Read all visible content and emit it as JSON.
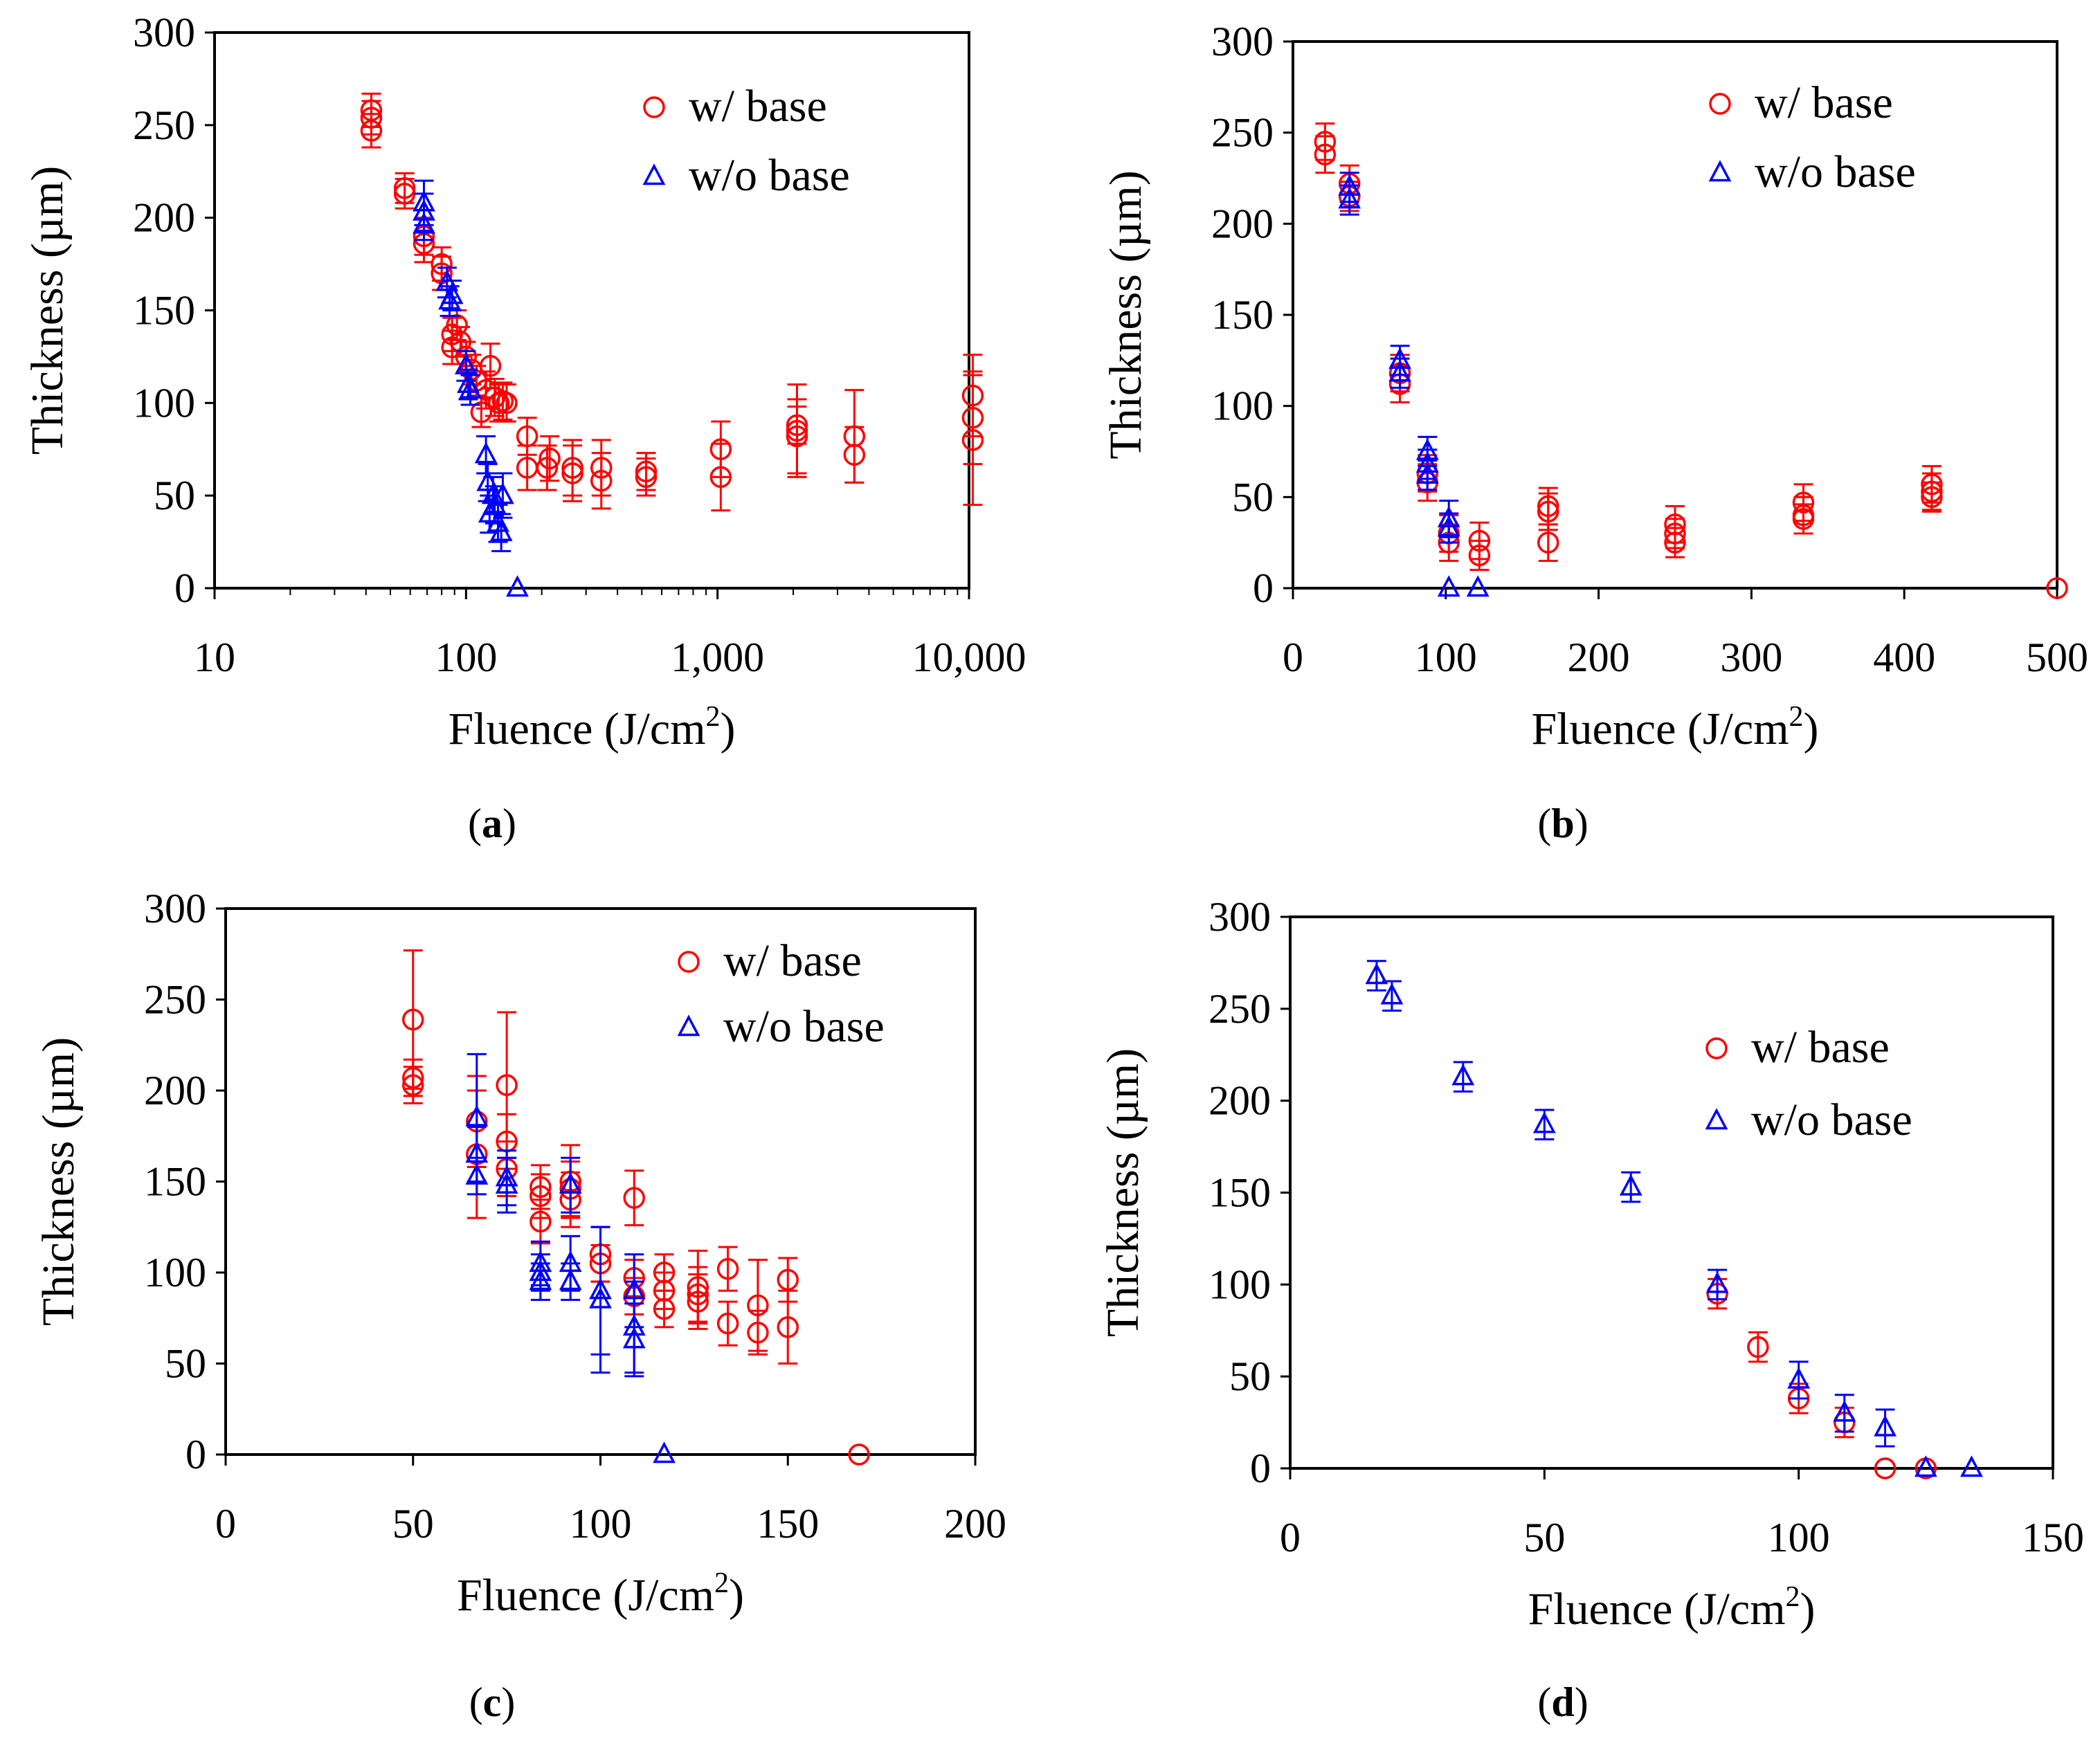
{
  "colors": {
    "w_base": "#ff0000",
    "wo_base": "#0000ff",
    "axis": "#000000"
  },
  "charts": [
    {
      "id": "a",
      "type": "scatter",
      "caption": "a",
      "xscale": "log",
      "xlim": [
        10,
        10000
      ],
      "ylim": [
        0,
        300
      ],
      "xticks": [
        10,
        100,
        1000,
        10000
      ],
      "xtick_labels": [
        "10",
        "100",
        "1,000",
        "10,000"
      ],
      "yticks": [
        0,
        50,
        100,
        150,
        200,
        250,
        300
      ],
      "ytick_labels": [
        "0",
        "50",
        "100",
        "150",
        "200",
        "250",
        "300"
      ],
      "xlabel": "Fluence (J/cm",
      "xlabel_sup": "2",
      "xlabel_end": ")",
      "ylabel": "Thickness (µm)",
      "legend_position": "top-right",
      "legend": [
        "w/ base",
        "w/o base"
      ],
      "series": [
        {
          "name": "w/ base",
          "marker": "circle",
          "color": "#ff0000",
          "points": [
            [
              42,
              258,
              9
            ],
            [
              42,
              254,
              9
            ],
            [
              42,
              247,
              9
            ],
            [
              57,
              216,
              8
            ],
            [
              57,
              213,
              8
            ],
            [
              68,
              186,
              10
            ],
            [
              68,
              190,
              10
            ],
            [
              80,
              175,
              9
            ],
            [
              80,
              170,
              9
            ],
            [
              88,
              137,
              9
            ],
            [
              88,
              130,
              9
            ],
            [
              92,
              142,
              8
            ],
            [
              95,
              133,
              8
            ],
            [
              100,
              125,
              8
            ],
            [
              105,
              118,
              8
            ],
            [
              110,
              112,
              8
            ],
            [
              115,
              95,
              8
            ],
            [
              120,
              107,
              10
            ],
            [
              125,
              120,
              12
            ],
            [
              130,
              103,
              10
            ],
            [
              135,
              100,
              10
            ],
            [
              140,
              101,
              10
            ],
            [
              145,
              100,
              10
            ],
            [
              175,
              82,
              10
            ],
            [
              175,
              65,
              12
            ],
            [
              210,
              65,
              12
            ],
            [
              215,
              70,
              12
            ],
            [
              265,
              65,
              15
            ],
            [
              265,
              62,
              15
            ],
            [
              345,
              65,
              15
            ],
            [
              345,
              58,
              15
            ],
            [
              520,
              63,
              10
            ],
            [
              520,
              60,
              10
            ],
            [
              1030,
              75,
              15
            ],
            [
              1030,
              60,
              18
            ],
            [
              2070,
              85,
              25
            ],
            [
              2070,
              82,
              20
            ],
            [
              2070,
              88,
              10
            ],
            [
              3500,
              82,
              25
            ],
            [
              3500,
              72,
              15
            ],
            [
              10350,
              104,
              22
            ],
            [
              10350,
              92,
              25
            ],
            [
              10350,
              80,
              35
            ]
          ]
        },
        {
          "name": "w/o base",
          "marker": "triangle",
          "color": "#0000ff",
          "points": [
            [
              68,
              208,
              12
            ],
            [
              68,
              203,
              10
            ],
            [
              68,
              196,
              8
            ],
            [
              84,
              165,
              8
            ],
            [
              86,
              155,
              8
            ],
            [
              88,
              158,
              8
            ],
            [
              100,
              120,
              8
            ],
            [
              102,
              110,
              8
            ],
            [
              104,
              107,
              8
            ],
            [
              120,
              72,
              10
            ],
            [
              122,
              57,
              10
            ],
            [
              124,
              40,
              10
            ],
            [
              128,
              50,
              10
            ],
            [
              130,
              45,
              10
            ],
            [
              134,
              35,
              10
            ],
            [
              138,
              30,
              10
            ],
            [
              140,
              50,
              12
            ],
            [
              160,
              0,
              0
            ]
          ]
        }
      ]
    },
    {
      "id": "b",
      "type": "scatter",
      "caption": "b",
      "xscale": "linear",
      "xlim": [
        0,
        500
      ],
      "ylim": [
        0,
        300
      ],
      "xticks": [
        0,
        100,
        200,
        300,
        400,
        500
      ],
      "xtick_labels": [
        "0",
        "100",
        "200",
        "300",
        "400",
        "500"
      ],
      "yticks": [
        0,
        50,
        100,
        150,
        200,
        250,
        300
      ],
      "ytick_labels": [
        "0",
        "50",
        "100",
        "150",
        "200",
        "250",
        "300"
      ],
      "xlabel": "Fluence (J/cm",
      "xlabel_sup": "2",
      "xlabel_end": ")",
      "ylabel": "Thickness (µm)",
      "legend_position": "top-right",
      "legend": [
        "w/ base",
        "w/o base"
      ],
      "series": [
        {
          "name": "w/ base",
          "marker": "circle",
          "color": "#ff0000",
          "points": [
            [
              21,
              245,
              10
            ],
            [
              21,
              238,
              10
            ],
            [
              37,
              222,
              10
            ],
            [
              37,
              215,
              8
            ],
            [
              70,
              118,
              10
            ],
            [
              70,
              112,
              10
            ],
            [
              88,
              63,
              10
            ],
            [
              88,
              58,
              10
            ],
            [
              102,
              30,
              10
            ],
            [
              102,
              25,
              10
            ],
            [
              122,
              26,
              10
            ],
            [
              122,
              18,
              8
            ],
            [
              167,
              45,
              10
            ],
            [
              167,
              42,
              10
            ],
            [
              167,
              25,
              10
            ],
            [
              250,
              35,
              10
            ],
            [
              250,
              30,
              8
            ],
            [
              250,
              25,
              8
            ],
            [
              334,
              47,
              10
            ],
            [
              334,
              40,
              10
            ],
            [
              334,
              38,
              8
            ],
            [
              418,
              57,
              10
            ],
            [
              418,
              53,
              10
            ],
            [
              418,
              50,
              8
            ],
            [
              500,
              0,
              0
            ]
          ]
        },
        {
          "name": "w/o base",
          "marker": "triangle",
          "color": "#0000ff",
          "points": [
            [
              37,
              220,
              8
            ],
            [
              37,
              213,
              8
            ],
            [
              70,
              125,
              8
            ],
            [
              70,
              118,
              8
            ],
            [
              88,
              75,
              8
            ],
            [
              88,
              68,
              8
            ],
            [
              88,
              62,
              8
            ],
            [
              102,
              38,
              10
            ],
            [
              102,
              33,
              8
            ],
            [
              102,
              0,
              0
            ],
            [
              121,
              0,
              0
            ]
          ]
        }
      ]
    },
    {
      "id": "c",
      "type": "scatter",
      "caption": "c",
      "xscale": "linear",
      "xlim": [
        0,
        200
      ],
      "ylim": [
        0,
        300
      ],
      "xticks": [
        0,
        50,
        100,
        150,
        200
      ],
      "xtick_labels": [
        "0",
        "50",
        "100",
        "150",
        "200"
      ],
      "yticks": [
        0,
        50,
        100,
        150,
        200,
        250,
        300
      ],
      "ytick_labels": [
        "0",
        "50",
        "100",
        "150",
        "200",
        "250",
        "300"
      ],
      "xlabel": "Fluence (J/cm",
      "xlabel_sup": "2",
      "xlabel_end": ")",
      "ylabel": "Thickness (µm)",
      "legend_position": "top-right",
      "legend": [
        "w/ base",
        "w/o base"
      ],
      "series": [
        {
          "name": "w/ base",
          "marker": "circle",
          "color": "#ff0000",
          "points": [
            [
              50,
              239,
              38
            ],
            [
              50,
              207,
              10
            ],
            [
              50,
              203,
              10
            ],
            [
              67,
              183,
              25
            ],
            [
              67,
              165,
              35
            ],
            [
              75,
              203,
              40
            ],
            [
              75,
              172,
              15
            ],
            [
              75,
              157,
              15
            ],
            [
              84,
              147,
              12
            ],
            [
              84,
              142,
              12
            ],
            [
              84,
              128,
              12
            ],
            [
              92,
              150,
              20
            ],
            [
              92,
              146,
              15
            ],
            [
              92,
              140,
              15
            ],
            [
              100,
              110,
              15
            ],
            [
              100,
              105,
              10
            ],
            [
              109,
              141,
              15
            ],
            [
              109,
              97,
              10
            ],
            [
              109,
              87,
              10
            ],
            [
              117,
              100,
              10
            ],
            [
              117,
              90,
              10
            ],
            [
              117,
              80,
              10
            ],
            [
              126,
              92,
              20
            ],
            [
              126,
              88,
              15
            ],
            [
              126,
              84,
              15
            ],
            [
              134,
              102,
              12
            ],
            [
              134,
              72,
              12
            ],
            [
              142,
              82,
              25
            ],
            [
              142,
              67,
              12
            ],
            [
              150,
              96,
              12
            ],
            [
              150,
              70,
              20
            ],
            [
              169,
              0,
              0
            ]
          ]
        },
        {
          "name": "w/o base",
          "marker": "triangle",
          "color": "#0000ff",
          "points": [
            [
              67,
              185,
              35
            ],
            [
              67,
              165,
              15
            ],
            [
              67,
              153,
              10
            ],
            [
              75,
              152,
              15
            ],
            [
              75,
              148,
              15
            ],
            [
              84,
              105,
              12
            ],
            [
              84,
              100,
              10
            ],
            [
              84,
              95,
              10
            ],
            [
              92,
              148,
              15
            ],
            [
              92,
              105,
              15
            ],
            [
              92,
              95,
              10
            ],
            [
              100,
              90,
              35
            ],
            [
              100,
              85,
              40
            ],
            [
              109,
              90,
              20
            ],
            [
              109,
              70,
              25
            ],
            [
              109,
              63,
              20
            ],
            [
              117,
              0,
              0
            ]
          ]
        }
      ]
    },
    {
      "id": "d",
      "type": "scatter",
      "caption": "d",
      "xscale": "linear",
      "xlim": [
        0,
        150
      ],
      "ylim": [
        0,
        300
      ],
      "xticks": [
        0,
        50,
        100,
        150
      ],
      "xtick_labels": [
        "0",
        "50",
        "100",
        "150"
      ],
      "yticks": [
        0,
        50,
        100,
        150,
        200,
        250,
        300
      ],
      "ytick_labels": [
        "0",
        "50",
        "100",
        "150",
        "200",
        "250",
        "300"
      ],
      "xlabel": "Fluence (J/cm",
      "xlabel_sup": "2",
      "xlabel_end": ")",
      "ylabel": "Thickness (µm)",
      "legend_position": "right",
      "legend": [
        "w/ base",
        "w/o base"
      ],
      "series": [
        {
          "name": "w/ base",
          "marker": "circle",
          "color": "#ff0000",
          "points": [
            [
              84,
              95,
              8
            ],
            [
              92,
              66,
              8
            ],
            [
              100,
              38,
              8
            ],
            [
              109,
              25,
              8
            ],
            [
              117,
              0,
              0
            ],
            [
              125,
              0,
              0
            ]
          ]
        },
        {
          "name": "w/o base",
          "marker": "triangle",
          "color": "#0000ff",
          "points": [
            [
              17,
              268,
              8
            ],
            [
              20,
              257,
              8
            ],
            [
              34,
              213,
              8
            ],
            [
              50,
              187,
              8
            ],
            [
              67,
              153,
              8
            ],
            [
              84,
              100,
              8
            ],
            [
              100,
              48,
              10
            ],
            [
              109,
              30,
              10
            ],
            [
              117,
              22,
              10
            ],
            [
              125,
              0,
              0
            ],
            [
              134,
              0,
              0
            ]
          ]
        }
      ]
    }
  ]
}
